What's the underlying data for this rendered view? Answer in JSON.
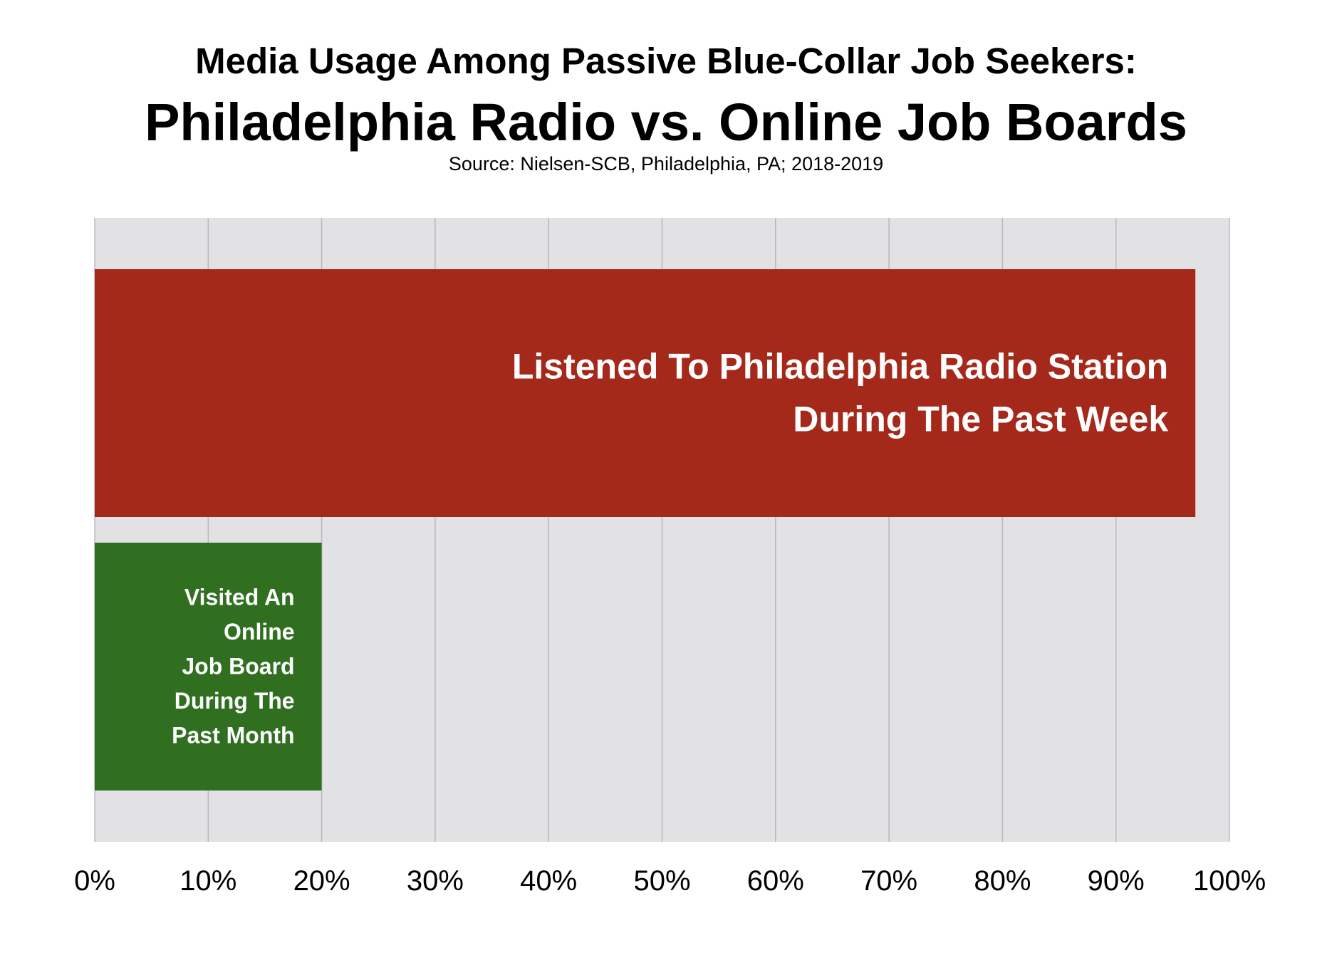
{
  "title": "Media Usage Among Passive Blue-Collar Job Seekers:",
  "subtitle": "Philadelphia Radio vs. Online Job Boards",
  "source": "Source: Nielsen-SCB, Philadelphia, PA; 2018-2019",
  "colors": {
    "plot_background": "#e2e2e4",
    "gridline": "#b9b9bb",
    "radio_bar": "#a5291a",
    "job_board_bar": "#2f6f1f"
  },
  "chart_data": {
    "type": "bar",
    "orientation": "horizontal",
    "title": "Media Usage Among Passive Blue-Collar Job Seekers:",
    "subtitle": "Philadelphia Radio vs. Online Job Boards",
    "categories": [
      "Listened To Philadelphia Radio Station During The Past Week",
      "Visited  An Online Job Board During The Past Month"
    ],
    "category_lines": [
      [
        "Listened To Philadelphia Radio Station",
        "During The Past Week"
      ],
      [
        "Visited  An",
        "Online",
        "Job Board",
        "During The",
        "Past Month"
      ]
    ],
    "values": [
      97,
      20
    ],
    "bar_colors": [
      "#a5291a",
      "#2f6f1f"
    ],
    "xlim": [
      0,
      100
    ],
    "xticks": [
      "0%",
      "10%",
      "20%",
      "30%",
      "40%",
      "50%",
      "60%",
      "70%",
      "80%",
      "90%",
      "100%"
    ],
    "grid": true,
    "legend": "none",
    "xlabel": "",
    "ylabel": ""
  }
}
